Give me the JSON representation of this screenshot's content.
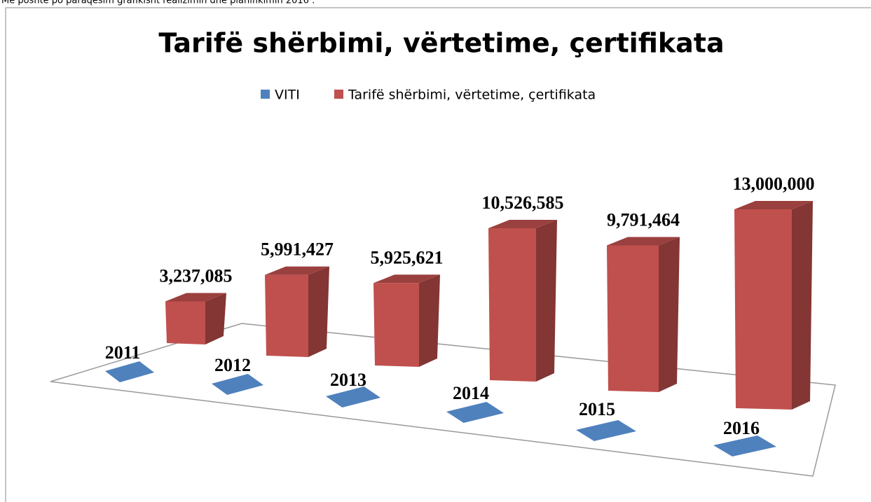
{
  "header_text": "Më poshtë po paraqesim grafikisht realizimin dhe planifikimin 2016 :",
  "chart_data": {
    "type": "bar3d",
    "title": "Tarifë shërbimi, vërtetime, çertifikata",
    "series": [
      {
        "name": "VITI",
        "color": "#4f81bd",
        "values": [
          2011,
          2012,
          2013,
          2014,
          2015,
          2016
        ]
      },
      {
        "name": "Tarifë shërbimi, vërtetime, çertifikata",
        "color": "#c0504d",
        "values": [
          3237085,
          5991427,
          5925621,
          10526585,
          9791464,
          13000000
        ],
        "value_labels": [
          "3,237,085",
          "5,991,427",
          "5,925,621",
          "10,526,585",
          "9,791,464",
          "13,000,000"
        ]
      }
    ]
  }
}
